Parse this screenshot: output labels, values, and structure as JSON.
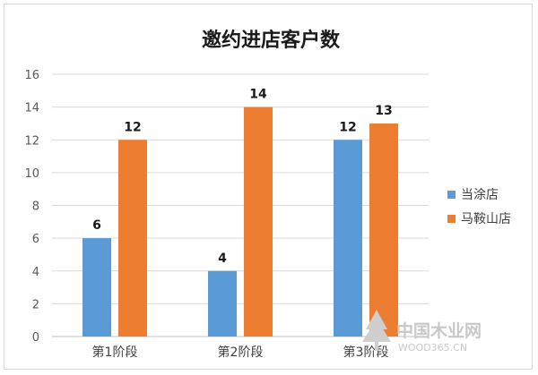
{
  "chart_data": {
    "type": "bar",
    "title": "邀约进店客户数",
    "categories": [
      "第1阶段",
      "第2阶段",
      "第3阶段"
    ],
    "series": [
      {
        "name": "当涂店",
        "values": [
          6,
          4,
          12
        ],
        "color": "#5b9bd5"
      },
      {
        "name": "马鞍山店",
        "values": [
          12,
          14,
          13
        ],
        "color": "#ed7d31"
      }
    ],
    "ylim": [
      0,
      16
    ],
    "yticks": [
      0,
      2,
      4,
      6,
      8,
      10,
      12,
      14,
      16
    ],
    "grid": true,
    "legend": "right"
  },
  "watermark": {
    "text": "中国木业网",
    "sub": "WOOD365.CN",
    "icon": "tree-logo-icon"
  }
}
